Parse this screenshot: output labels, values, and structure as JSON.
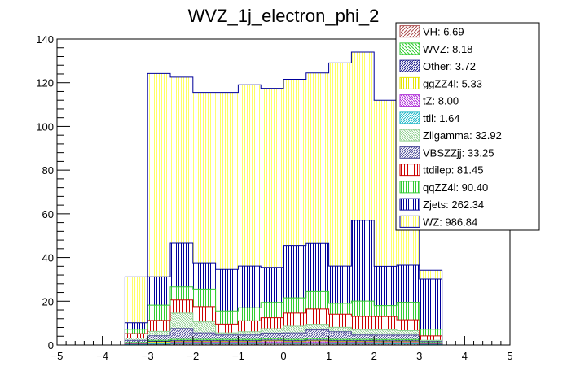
{
  "chart_data": {
    "type": "bar",
    "stacked": true,
    "title": "WVZ_1j_electron_phi_2",
    "xlabel": "",
    "ylabel": "",
    "xlim": [
      -5,
      5
    ],
    "ylim": [
      0,
      140
    ],
    "x_ticks": [
      -5,
      -4,
      -3,
      -2,
      -1,
      0,
      1,
      2,
      3,
      4,
      5
    ],
    "y_ticks": [
      0,
      20,
      40,
      60,
      80,
      100,
      120,
      140
    ],
    "bin_edges": [
      -3.5,
      -3.0,
      -2.5,
      -2.0,
      -1.5,
      -1.0,
      -0.5,
      0.0,
      0.5,
      1.0,
      1.5,
      2.0,
      2.5,
      3.0,
      3.5
    ],
    "legend_position": "top-right",
    "stack_order": [
      "VH",
      "ttll",
      "tZ",
      "ggZZ4l",
      "Other",
      "WVZ",
      "VBSZZjj",
      "Zllgamma",
      "ttdilep",
      "qqZZ4l",
      "Zjets",
      "WZ"
    ],
    "series": [
      {
        "name": "VH",
        "legend": "VH: 6.69",
        "color": "#ac4f4f",
        "values": [
          0.2,
          0.4,
          0.5,
          0.5,
          0.5,
          0.5,
          0.6,
          0.5,
          0.6,
          0.5,
          0.5,
          0.5,
          0.5,
          0.2
        ]
      },
      {
        "name": "WVZ",
        "legend": "WVZ: 8.18",
        "color": "#33cc33",
        "values": [
          0.3,
          0.5,
          0.6,
          0.6,
          0.6,
          0.6,
          0.7,
          0.6,
          0.7,
          0.6,
          0.6,
          0.6,
          0.6,
          0.3
        ]
      },
      {
        "name": "Other",
        "legend": "Other: 3.72",
        "color": "#1d1d8c",
        "values": [
          0.1,
          0.3,
          0.3,
          0.3,
          0.3,
          0.3,
          0.3,
          0.3,
          0.3,
          0.3,
          0.3,
          0.3,
          0.3,
          0.1
        ]
      },
      {
        "name": "ggZZ4l",
        "legend": "ggZZ4l: 5.33",
        "color": "#e6e600",
        "values": [
          0.2,
          0.4,
          0.4,
          0.4,
          0.4,
          0.4,
          0.5,
          0.4,
          0.5,
          0.4,
          0.4,
          0.4,
          0.4,
          0.2
        ]
      },
      {
        "name": "tZ",
        "legend": "tZ: 8.00",
        "color": "#b030d8",
        "values": [
          0.3,
          0.5,
          0.6,
          0.6,
          0.6,
          0.6,
          0.7,
          0.6,
          0.7,
          0.6,
          0.6,
          0.6,
          0.6,
          0.3
        ]
      },
      {
        "name": "ttll",
        "legend": "ttll: 1.64",
        "color": "#20b8c8",
        "values": [
          0.05,
          0.1,
          0.15,
          0.15,
          0.15,
          0.15,
          0.15,
          0.15,
          0.15,
          0.15,
          0.15,
          0.1,
          0.1,
          0.05
        ]
      },
      {
        "name": "Zllgamma",
        "legend": "Zllgamma: 32.92",
        "color": "#8fcf8f",
        "values": [
          1.0,
          2.0,
          7.0,
          5.0,
          1.0,
          1.5,
          2.0,
          3.0,
          2.5,
          2.0,
          2.5,
          2.5,
          2.0,
          0.5
        ]
      },
      {
        "name": "VBSZZjj",
        "legend": "VBSZZjj: 33.25",
        "color": "#4d4d99",
        "values": [
          1.0,
          2.0,
          5.0,
          3.0,
          2.0,
          2.0,
          2.5,
          3.0,
          4.0,
          3.5,
          2.0,
          2.0,
          2.0,
          0.5
        ]
      },
      {
        "name": "ttdilep",
        "legend": "ttdilep: 81.45",
        "color": "#cc0000",
        "values": [
          2.0,
          5.0,
          6.0,
          7.0,
          4.0,
          5.0,
          5.0,
          6.0,
          7.0,
          6.0,
          6.0,
          6.0,
          5.0,
          2.0
        ]
      },
      {
        "name": "qqZZ4l",
        "legend": "qqZZ4l: 90.40",
        "color": "#33cc33",
        "values": [
          2.0,
          7.0,
          6.0,
          8.0,
          6.0,
          6.0,
          7.0,
          7.0,
          8.0,
          5.0,
          7.0,
          5.0,
          8.0,
          3.0
        ]
      },
      {
        "name": "Zjets",
        "legend": "Zjets: 262.34",
        "color": "#000099",
        "values": [
          3.0,
          13.0,
          20.0,
          12.0,
          19.0,
          19.0,
          16.0,
          24.0,
          22.0,
          17.0,
          37.0,
          18.0,
          17.0,
          23.0
        ]
      },
      {
        "name": "WZ",
        "legend": "WZ: 986.84",
        "color": "#ffff66",
        "values": [
          21.0,
          93.0,
          76.0,
          78.0,
          81.0,
          83.0,
          82.0,
          76.0,
          78.0,
          93.0,
          77.0,
          76.0,
          73.0,
          4.0
        ]
      }
    ]
  }
}
